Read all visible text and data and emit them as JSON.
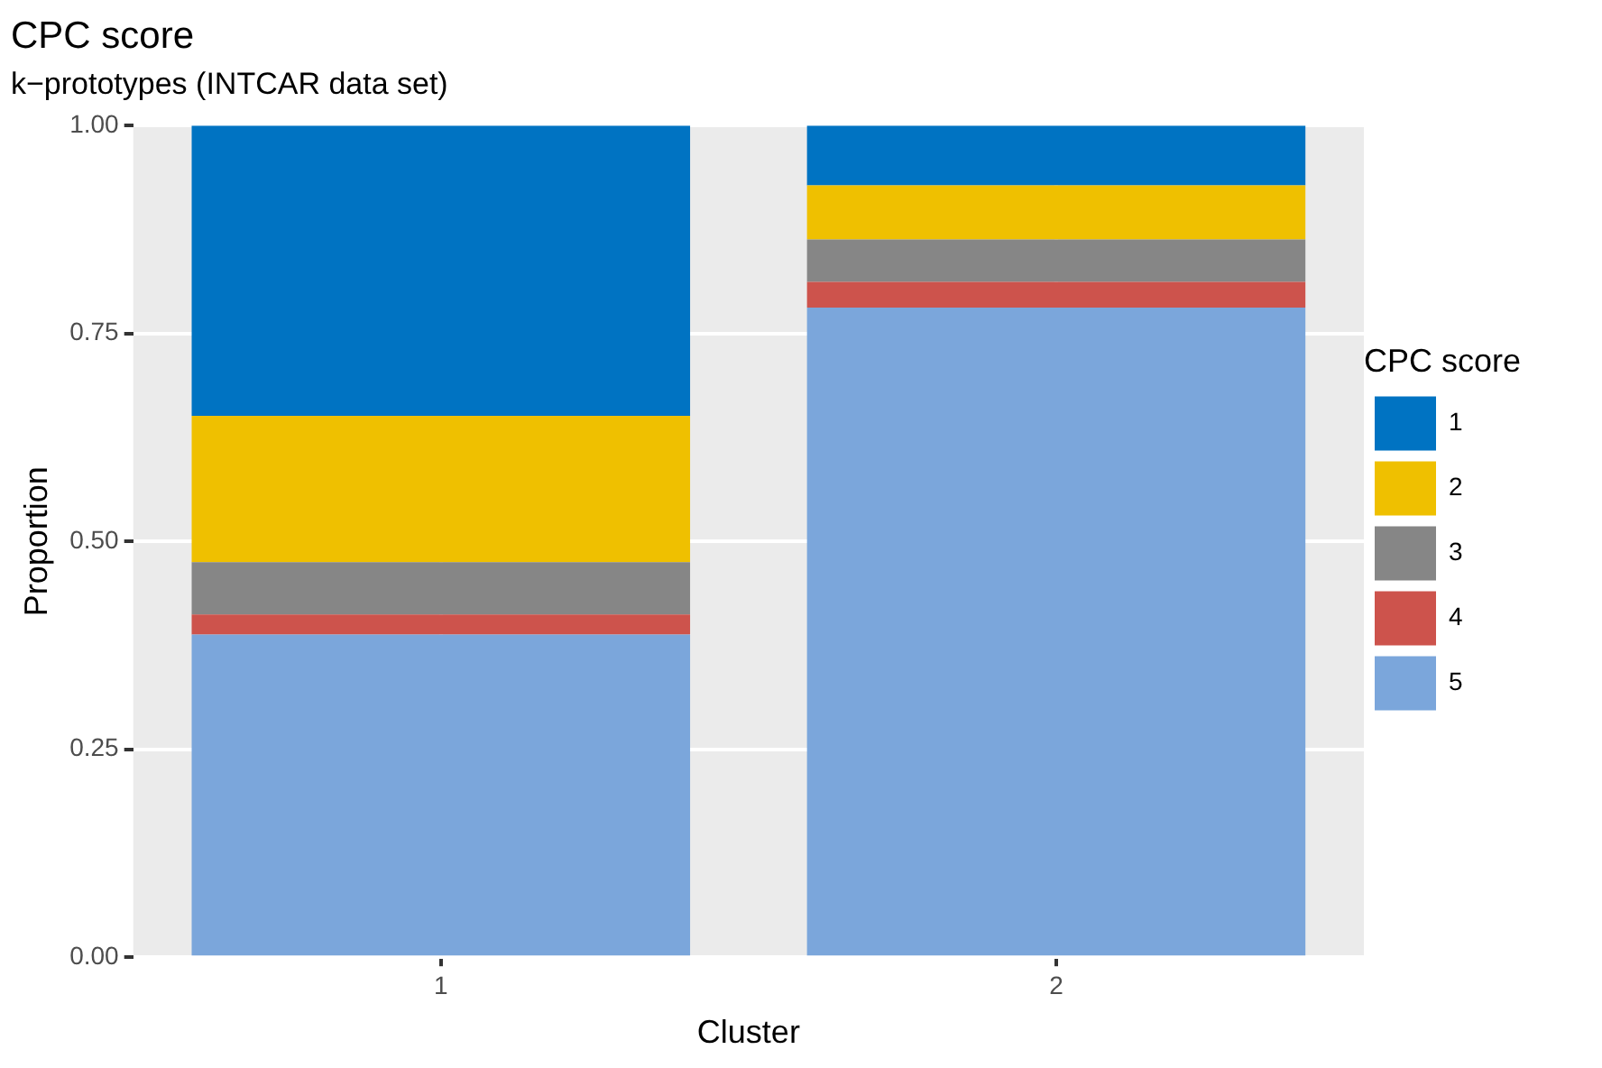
{
  "chart_data": {
    "type": "bar",
    "title": "CPC score",
    "subtitle": "k−prototypes (INTCAR data set)",
    "xlabel": "Cluster",
    "ylabel": "Proportion",
    "legend_title": "CPC score",
    "categories": [
      "1",
      "2"
    ],
    "stacked": true,
    "ylim": [
      0,
      1
    ],
    "yticks": [
      {
        "value": 0,
        "label": "0.00"
      },
      {
        "value": 0.25,
        "label": "0.25"
      },
      {
        "value": 0.5,
        "label": "0.50"
      },
      {
        "value": 0.75,
        "label": "0.75"
      },
      {
        "value": 1,
        "label": "1.00"
      }
    ],
    "grid": true,
    "legend": "right",
    "series": [
      {
        "name": "5",
        "color": "#7ba6db",
        "values": [
          0.388,
          0.781
        ]
      },
      {
        "name": "4",
        "color": "#cd534c",
        "values": [
          0.024,
          0.031
        ]
      },
      {
        "name": "3",
        "color": "#868686",
        "values": [
          0.063,
          0.051
        ]
      },
      {
        "name": "2",
        "color": "#efc000",
        "values": [
          0.176,
          0.065
        ]
      },
      {
        "name": "1",
        "color": "#0073c2",
        "values": [
          0.349,
          0.072
        ]
      }
    ]
  }
}
